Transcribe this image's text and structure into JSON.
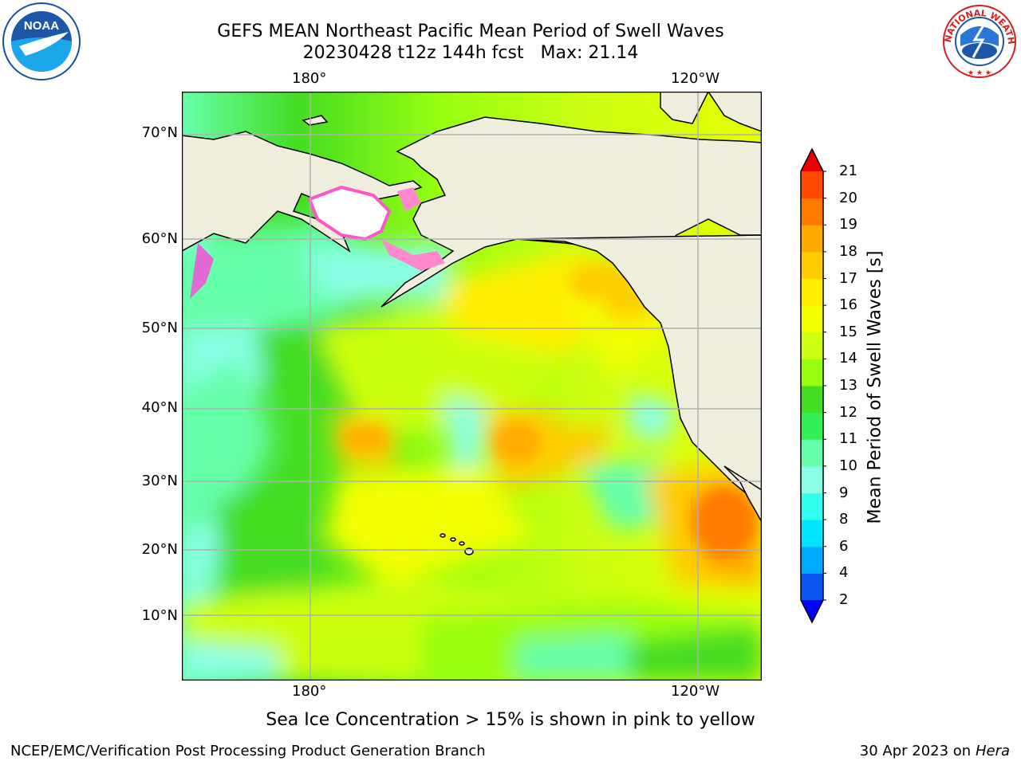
{
  "title_line1": "GEFS MEAN Northeast Pacific Mean Period of Swell Waves",
  "title_line2": "20230428 t12z 144h fcst   Max: 21.14",
  "map": {
    "top_labels": [
      "180°",
      "120°W"
    ],
    "bottom_labels": [
      "180°",
      "120°W"
    ],
    "lat_labels": [
      "70°N",
      "60°N",
      "50°N",
      "40°N",
      "30°N",
      "20°N",
      "10°N"
    ]
  },
  "colorbar": {
    "label": "Mean Period of Swell Waves [s]",
    "ticks": [
      "2",
      "4",
      "6",
      "8",
      "9",
      "10",
      "11",
      "12",
      "13",
      "14",
      "15",
      "16",
      "17",
      "18",
      "19",
      "20",
      "21"
    ],
    "colors": [
      "#0a55f0",
      "#00aaff",
      "#00e5ff",
      "#33ffee",
      "#8affe6",
      "#66ffaa",
      "#33ee55",
      "#44dd22",
      "#99ff11",
      "#ccff11",
      "#f2ff00",
      "#ffee00",
      "#ffcc00",
      "#ffaa00",
      "#ff7a00",
      "#ff4a00",
      "#ff1a00"
    ],
    "under_color": "#0000ff",
    "over_color": "#ee0000"
  },
  "note": "Sea Ice Concentration > 15% is shown in pink to yellow",
  "footer": {
    "credit": "NCEP/EMC/Verification Post Processing Product Generation Branch",
    "date": "30 Apr 2023 on",
    "machine": "Hera"
  },
  "logos": {
    "noaa_text": "NOAA",
    "nws_ring": "NATIONAL WEATHER SERVICE"
  }
}
